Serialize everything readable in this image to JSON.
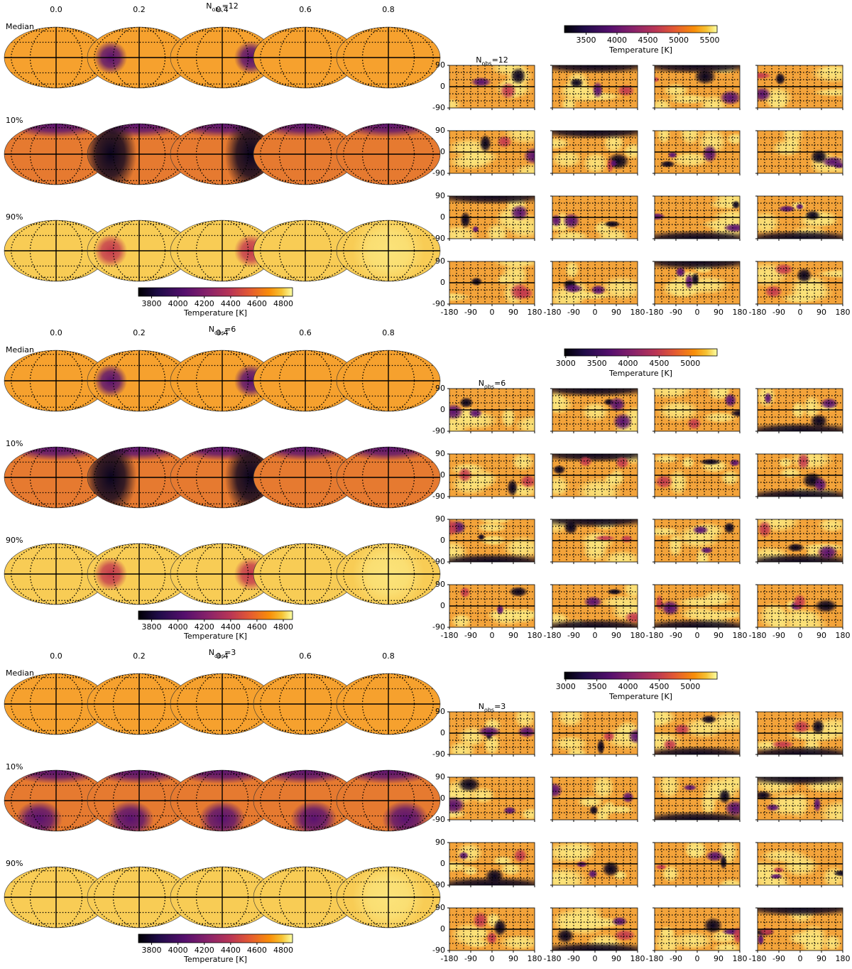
{
  "panels": [
    {
      "title": {
        "symbol": "N",
        "subscript": "obs",
        "equals": "=12"
      },
      "sphere_colorbar": {
        "lim": [
          3700,
          4870
        ],
        "ticks": [
          3800,
          4000,
          4200,
          4400,
          4600,
          4800
        ]
      },
      "map_colorbar": {
        "lim": [
          3150,
          5620
        ],
        "ticks": [
          3500,
          4000,
          4500,
          5000,
          5500
        ]
      }
    },
    {
      "title": {
        "symbol": "N",
        "subscript": "obs",
        "equals": "=6"
      },
      "sphere_colorbar": {
        "lim": [
          3700,
          4870
        ],
        "ticks": [
          3800,
          4000,
          4200,
          4400,
          4600,
          4800
        ]
      },
      "map_colorbar": {
        "lim": [
          2980,
          5430
        ],
        "ticks": [
          3000,
          3500,
          4000,
          4500,
          5000
        ]
      }
    },
    {
      "title": {
        "symbol": "N",
        "subscript": "obs",
        "equals": "=3"
      },
      "sphere_colorbar": {
        "lim": [
          3700,
          4870
        ],
        "ticks": [
          3800,
          4000,
          4200,
          4400,
          4600,
          4800
        ]
      },
      "map_colorbar": {
        "lim": [
          2980,
          5430
        ],
        "ticks": [
          3000,
          3500,
          4000,
          4500,
          5000
        ]
      }
    }
  ],
  "phases": [
    "0.0",
    "0.2",
    "0.4",
    "0.6",
    "0.8"
  ],
  "rows": [
    "Median",
    "10%",
    "90%"
  ],
  "colorbar_label": "Temperature [K]",
  "map_axes": {
    "xlim": [
      -180,
      180
    ],
    "ylim": [
      -90,
      90
    ],
    "xticks": [
      -180,
      -90,
      0,
      90,
      180
    ],
    "yticks": [
      90,
      0,
      -90
    ]
  }
}
